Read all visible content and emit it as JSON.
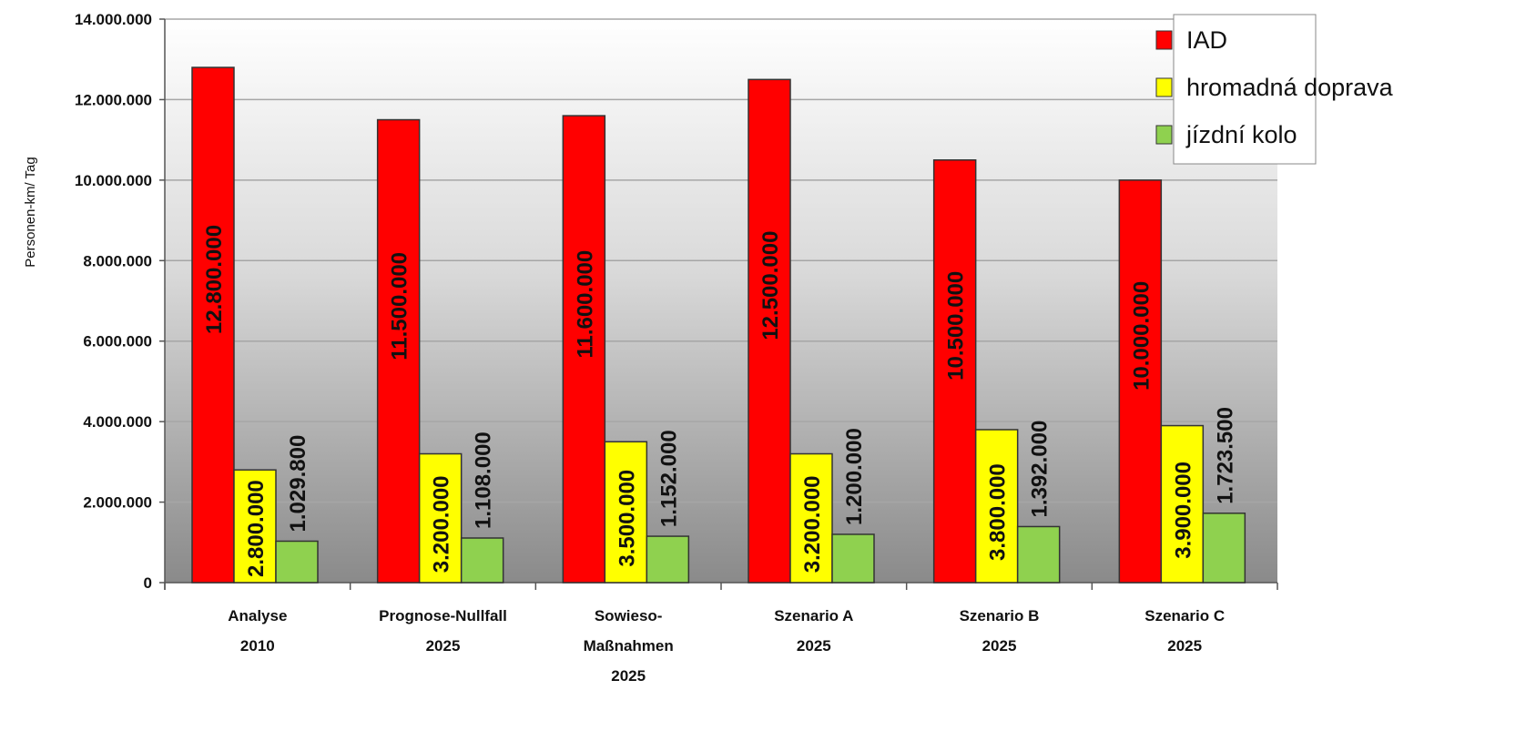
{
  "chart_data": {
    "type": "bar",
    "ylabel": "Personen-km/ Tag",
    "xlabel": "",
    "ylim": [
      0,
      14000000
    ],
    "yticks": [
      0,
      2000000,
      4000000,
      6000000,
      8000000,
      10000000,
      12000000,
      14000000
    ],
    "ytick_labels": [
      "0",
      "2.000.000",
      "4.000.000",
      "6.000.000",
      "8.000.000",
      "10.000.000",
      "12.000.000",
      "14.000.000"
    ],
    "categories": [
      [
        "Analyse",
        "2010"
      ],
      [
        "Prognose-Nullfall",
        "2025"
      ],
      [
        "Sowieso-",
        "Maßnahmen",
        "2025"
      ],
      [
        "Szenario A",
        "2025"
      ],
      [
        "Szenario B",
        "2025"
      ],
      [
        "Szenario C",
        "2025"
      ]
    ],
    "series": [
      {
        "name": "IAD",
        "color": "#ff0000",
        "values": [
          12800000,
          11500000,
          11600000,
          12500000,
          10500000,
          10000000
        ],
        "labels": [
          "12.800.000",
          "11.500.000",
          "11.600.000",
          "12.500.000",
          "10.500.000",
          "10.000.000"
        ]
      },
      {
        "name": "hromadná doprava",
        "color": "#ffff00",
        "values": [
          2800000,
          3200000,
          3500000,
          3200000,
          3800000,
          3900000
        ],
        "labels": [
          "2.800.000",
          "3.200.000",
          "3.500.000",
          "3.200.000",
          "3.800.000",
          "3.900.000"
        ]
      },
      {
        "name": "jízdní kolo",
        "color": "#8fd14f",
        "values": [
          1029800,
          1108000,
          1152000,
          1200000,
          1392000,
          1723500
        ],
        "labels": [
          "1.029.800",
          "1.108.000",
          "1.152.000",
          "1.200.000",
          "1.392.000",
          "1.723.500"
        ]
      }
    ],
    "grid": true,
    "legend_position": "top-right"
  }
}
